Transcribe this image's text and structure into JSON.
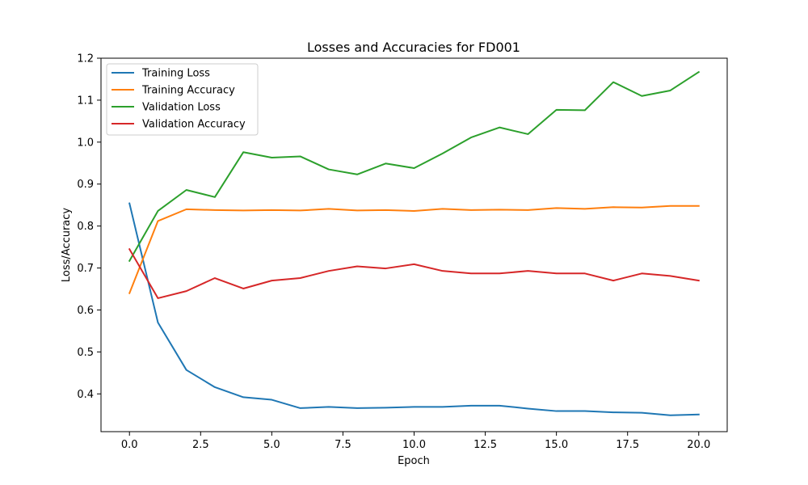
{
  "chart_data": {
    "type": "line",
    "title": "Losses and Accuracies for FD001",
    "xlabel": "Epoch",
    "ylabel": "Loss/Accuracy",
    "xlim": [
      -1.0,
      21.0
    ],
    "ylim": [
      0.31,
      1.2
    ],
    "xticks": [
      0.0,
      2.5,
      5.0,
      7.5,
      10.0,
      12.5,
      15.0,
      17.5,
      20.0
    ],
    "xtick_labels": [
      "0.0",
      "2.5",
      "5.0",
      "7.5",
      "10.0",
      "12.5",
      "15.0",
      "17.5",
      "20.0"
    ],
    "yticks": [
      0.4,
      0.5,
      0.6,
      0.7,
      0.8,
      0.9,
      1.0,
      1.1,
      1.2
    ],
    "ytick_labels": [
      "0.4",
      "0.5",
      "0.6",
      "0.7",
      "0.8",
      "0.9",
      "1.0",
      "1.1",
      "1.2"
    ],
    "grid": false,
    "legend_position": "top-left",
    "x": [
      0,
      1,
      2,
      3,
      4,
      5,
      6,
      7,
      8,
      9,
      10,
      11,
      12,
      13,
      14,
      15,
      16,
      17,
      18,
      19,
      20
    ],
    "series": [
      {
        "name": "Training Loss",
        "color": "#1f77b4",
        "values": [
          0.854,
          0.57,
          0.457,
          0.416,
          0.392,
          0.386,
          0.366,
          0.369,
          0.366,
          0.367,
          0.369,
          0.369,
          0.372,
          0.372,
          0.365,
          0.359,
          0.359,
          0.356,
          0.355,
          0.349,
          0.351
        ]
      },
      {
        "name": "Training Accuracy",
        "color": "#ff7f0e",
        "values": [
          0.64,
          0.812,
          0.84,
          0.838,
          0.837,
          0.838,
          0.837,
          0.841,
          0.837,
          0.838,
          0.836,
          0.841,
          0.838,
          0.839,
          0.838,
          0.843,
          0.841,
          0.845,
          0.844,
          0.848,
          0.848
        ]
      },
      {
        "name": "Validation Loss",
        "color": "#2ca02c",
        "values": [
          0.717,
          0.836,
          0.886,
          0.869,
          0.976,
          0.963,
          0.966,
          0.935,
          0.923,
          0.949,
          0.938,
          0.973,
          1.011,
          1.035,
          1.019,
          1.077,
          1.076,
          1.143,
          1.11,
          1.123,
          1.167
        ]
      },
      {
        "name": "Validation Accuracy",
        "color": "#d62728",
        "values": [
          0.745,
          0.628,
          0.645,
          0.676,
          0.651,
          0.67,
          0.676,
          0.693,
          0.704,
          0.699,
          0.709,
          0.693,
          0.687,
          0.687,
          0.693,
          0.687,
          0.687,
          0.67,
          0.687,
          0.681,
          0.67
        ]
      }
    ]
  }
}
